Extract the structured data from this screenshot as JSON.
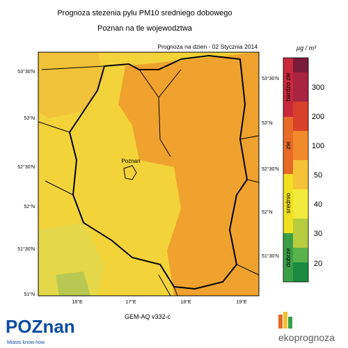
{
  "header": {
    "title": "Prognoza stezenia pylu PM10 sredniego dobowego",
    "subtitle": "Poznan na tle wojewodztwa"
  },
  "map": {
    "date_label": "Prognoza na dzien -  02 Stycznia 2014",
    "city_label": "Poznan",
    "model": "GEM-AQ v332-c",
    "left_lat_labels": [
      "53°30'N",
      "53°N",
      "52°30'N",
      "52°N",
      "51°30'N",
      "51°N"
    ],
    "right_lat_labels": [
      "53°30'N",
      "53°N",
      "52°30'N",
      "52°N",
      "51°30'N"
    ],
    "lon_labels": [
      "16°E",
      "17°E",
      "18°E",
      "19°E"
    ]
  },
  "legend": {
    "unit": "µg / m³",
    "classes": [
      "bardzo zle",
      "zle",
      "srednio",
      "dobrze"
    ],
    "levels": [
      "300",
      "200",
      "100",
      "50",
      "40",
      "30",
      "20"
    ]
  },
  "footer": {
    "left_logo": "POZnan",
    "left_tagline": "Miasto know-how",
    "right_logo": "ekoprognoza"
  }
}
